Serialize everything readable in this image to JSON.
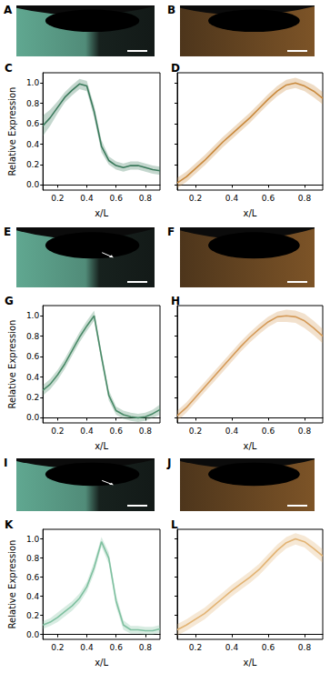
{
  "chart_data": [
    {
      "type": "line",
      "title": "C",
      "xlabel": "x/L",
      "ylabel": "Relative Expression",
      "x": [
        0.1,
        0.15,
        0.2,
        0.25,
        0.3,
        0.35,
        0.4,
        0.45,
        0.5,
        0.55,
        0.6,
        0.65,
        0.7,
        0.75,
        0.8,
        0.85,
        0.9
      ],
      "values": [
        0.58,
        0.66,
        0.76,
        0.86,
        0.93,
        0.99,
        0.97,
        0.72,
        0.38,
        0.24,
        0.19,
        0.17,
        0.19,
        0.19,
        0.17,
        0.15,
        0.14
      ],
      "error": [
        0.1,
        0.08,
        0.06,
        0.05,
        0.05,
        0.05,
        0.05,
        0.06,
        0.06,
        0.04,
        0.04,
        0.04,
        0.04,
        0.04,
        0.04,
        0.04,
        0.04
      ],
      "color": "#3b7a5c",
      "xlim": [
        0.1,
        0.9
      ],
      "xticks": [
        0.2,
        0.4,
        0.6,
        0.8
      ],
      "ylim": [
        -0.05,
        1.1
      ],
      "yticks": [
        {
          "value": 0,
          "label": "0.0"
        },
        0.2,
        0.4,
        0.6,
        0.8,
        {
          "value": 1,
          "label": "1.0"
        }
      ]
    },
    {
      "type": "line",
      "title": "D",
      "xlabel": "x/L",
      "tick_labels": "x",
      "x": [
        0.1,
        0.15,
        0.2,
        0.25,
        0.3,
        0.35,
        0.4,
        0.45,
        0.5,
        0.55,
        0.6,
        0.65,
        0.7,
        0.75,
        0.8,
        0.85,
        0.9
      ],
      "values": [
        0.02,
        0.08,
        0.16,
        0.24,
        0.33,
        0.42,
        0.5,
        0.58,
        0.66,
        0.75,
        0.84,
        0.92,
        0.98,
        1.0,
        0.97,
        0.92,
        0.85
      ],
      "error": [
        0.05,
        0.05,
        0.05,
        0.05,
        0.05,
        0.05,
        0.05,
        0.05,
        0.05,
        0.05,
        0.05,
        0.05,
        0.05,
        0.05,
        0.05,
        0.06,
        0.06
      ],
      "color": "#c98a3e",
      "xlim": [
        0.1,
        0.9
      ],
      "xticks": [
        0.2,
        0.4,
        0.6,
        0.8
      ],
      "ylim": [
        -0.05,
        1.1
      ],
      "yticks": [
        {
          "value": 0,
          "label": "0.0"
        },
        0.2,
        0.4,
        0.6,
        0.8,
        {
          "value": 1,
          "label": "1.0"
        }
      ]
    },
    {
      "type": "line",
      "title": "G",
      "xlabel": "x/L",
      "ylabel": "Relative Expression",
      "x": [
        0.1,
        0.15,
        0.2,
        0.25,
        0.3,
        0.35,
        0.4,
        0.45,
        0.5,
        0.55,
        0.6,
        0.65,
        0.7,
        0.75,
        0.8,
        0.85,
        0.9
      ],
      "values": [
        0.27,
        0.33,
        0.42,
        0.53,
        0.66,
        0.79,
        0.9,
        1.0,
        0.6,
        0.22,
        0.07,
        0.03,
        0.01,
        0.0,
        0.01,
        0.04,
        0.08
      ],
      "error": [
        0.05,
        0.05,
        0.05,
        0.05,
        0.05,
        0.05,
        0.05,
        0.05,
        0.05,
        0.05,
        0.04,
        0.04,
        0.04,
        0.04,
        0.04,
        0.04,
        0.05
      ],
      "color": "#4a8a68",
      "xlim": [
        0.1,
        0.9
      ],
      "xticks": [
        0.2,
        0.4,
        0.6,
        0.8
      ],
      "ylim": [
        -0.05,
        1.1
      ],
      "yticks": [
        {
          "value": 0,
          "label": "0.0"
        },
        0.2,
        0.4,
        0.6,
        0.8,
        {
          "value": 1,
          "label": "1.0"
        }
      ]
    },
    {
      "type": "line",
      "title": "H",
      "xlabel": "x/L",
      "tick_labels": "x",
      "x": [
        0.1,
        0.15,
        0.2,
        0.25,
        0.3,
        0.35,
        0.4,
        0.45,
        0.5,
        0.55,
        0.6,
        0.65,
        0.7,
        0.75,
        0.8,
        0.85,
        0.9
      ],
      "values": [
        0.02,
        0.1,
        0.2,
        0.3,
        0.4,
        0.5,
        0.6,
        0.7,
        0.79,
        0.87,
        0.94,
        0.99,
        1.0,
        0.99,
        0.95,
        0.88,
        0.8
      ],
      "error": [
        0.05,
        0.05,
        0.05,
        0.05,
        0.05,
        0.05,
        0.05,
        0.05,
        0.05,
        0.05,
        0.05,
        0.05,
        0.06,
        0.06,
        0.07,
        0.07,
        0.07
      ],
      "color": "#d49a58",
      "xlim": [
        0.1,
        0.9
      ],
      "xticks": [
        0.2,
        0.4,
        0.6,
        0.8
      ],
      "ylim": [
        -0.05,
        1.1
      ],
      "yticks": [
        {
          "value": 0,
          "label": "0.0"
        },
        0.2,
        0.4,
        0.6,
        0.8,
        {
          "value": 1,
          "label": "1.0"
        }
      ]
    },
    {
      "type": "line",
      "title": "K",
      "xlabel": "x/L",
      "ylabel": "Relative Expression",
      "x": [
        0.1,
        0.15,
        0.2,
        0.25,
        0.3,
        0.35,
        0.4,
        0.45,
        0.5,
        0.55,
        0.6,
        0.65,
        0.7,
        0.75,
        0.8,
        0.85,
        0.9
      ],
      "values": [
        0.1,
        0.13,
        0.18,
        0.24,
        0.3,
        0.38,
        0.5,
        0.7,
        0.97,
        0.8,
        0.35,
        0.1,
        0.05,
        0.05,
        0.04,
        0.04,
        0.06
      ],
      "error": [
        0.04,
        0.04,
        0.05,
        0.05,
        0.05,
        0.05,
        0.05,
        0.06,
        0.05,
        0.06,
        0.06,
        0.05,
        0.04,
        0.04,
        0.04,
        0.04,
        0.04
      ],
      "color": "#7fc0a0",
      "xlim": [
        0.1,
        0.9
      ],
      "xticks": [
        0.2,
        0.4,
        0.6,
        0.8
      ],
      "ylim": [
        -0.05,
        1.1
      ],
      "yticks": [
        {
          "value": 0,
          "label": "0.0"
        },
        0.2,
        0.4,
        0.6,
        0.8,
        {
          "value": 1,
          "label": "1.0"
        }
      ]
    },
    {
      "type": "line",
      "title": "L",
      "xlabel": "x/L",
      "tick_labels": "x",
      "x": [
        0.1,
        0.15,
        0.2,
        0.25,
        0.3,
        0.35,
        0.4,
        0.45,
        0.5,
        0.55,
        0.6,
        0.65,
        0.7,
        0.75,
        0.8,
        0.85,
        0.9
      ],
      "values": [
        0.05,
        0.1,
        0.16,
        0.22,
        0.3,
        0.38,
        0.46,
        0.53,
        0.6,
        0.68,
        0.78,
        0.88,
        0.96,
        1.0,
        0.97,
        0.9,
        0.82
      ],
      "error": [
        0.06,
        0.06,
        0.06,
        0.06,
        0.06,
        0.06,
        0.06,
        0.06,
        0.06,
        0.06,
        0.06,
        0.06,
        0.06,
        0.06,
        0.06,
        0.07,
        0.07
      ],
      "color": "#e2b373",
      "xlim": [
        0.1,
        0.9
      ],
      "xticks": [
        0.2,
        0.4,
        0.6,
        0.8
      ],
      "ylim": [
        -0.05,
        1.1
      ],
      "yticks": [
        {
          "value": 0,
          "label": "0.0"
        },
        0.2,
        0.4,
        0.6,
        0.8,
        {
          "value": 1,
          "label": "1.0"
        }
      ]
    }
  ],
  "image_panels": [
    {
      "label": "A",
      "color": "#6fc3a8"
    },
    {
      "label": "B",
      "color": "#c8843a"
    },
    {
      "label": "E",
      "color": "#6fc3a8"
    },
    {
      "label": "F",
      "color": "#c8843a"
    },
    {
      "label": "I",
      "color": "#6fc3a8"
    },
    {
      "label": "J",
      "color": "#c8843a"
    }
  ]
}
